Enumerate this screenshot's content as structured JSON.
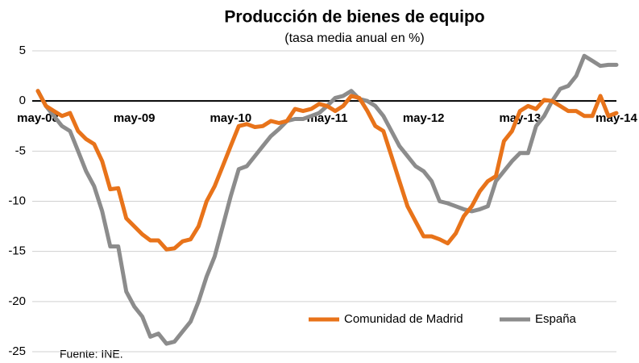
{
  "chart_data": {
    "type": "line",
    "title": "Producción de bienes de equipo",
    "subtitle": "(tasa media anual en %)",
    "source": "Fuente: INE.",
    "categories": [
      "may-08",
      null,
      null,
      null,
      null,
      null,
      null,
      null,
      null,
      null,
      null,
      null,
      "may-09",
      null,
      null,
      null,
      null,
      null,
      null,
      null,
      null,
      null,
      null,
      null,
      "may-10",
      null,
      null,
      null,
      null,
      null,
      null,
      null,
      null,
      null,
      null,
      null,
      "may-11",
      null,
      null,
      null,
      null,
      null,
      null,
      null,
      null,
      null,
      null,
      null,
      "may-12",
      null,
      null,
      null,
      null,
      null,
      null,
      null,
      null,
      null,
      null,
      null,
      "may-13",
      null,
      null,
      null,
      null,
      null,
      null,
      null,
      null,
      null,
      null,
      null,
      "may-14"
    ],
    "series": [
      {
        "name": "Comunidad de Madrid",
        "color": "#e8731a",
        "values": [
          1,
          -0.5,
          -1,
          -1.5,
          -1.2,
          -3,
          -3.8,
          -4.3,
          -6,
          -8.8,
          -8.7,
          -11.7,
          -12.5,
          -13.3,
          -13.9,
          -13.9,
          -14.8,
          -14.7,
          -14,
          -13.8,
          -12.5,
          -10,
          -8.5,
          -6.5,
          -4.5,
          -2.5,
          -2.3,
          -2.6,
          -2.5,
          -2,
          -2.2,
          -2,
          -0.8,
          -1,
          -0.8,
          -0.3,
          -0.5,
          -1,
          -0.5,
          0.5,
          0.3,
          -1,
          -2.5,
          -3,
          -5.5,
          -8,
          -10.5,
          -12,
          -13.5,
          -13.5,
          -13.8,
          -14.2,
          -13.2,
          -11.5,
          -10.5,
          -9,
          -8,
          -7.5,
          -4,
          -3,
          -1,
          -0.5,
          -0.8,
          0.1,
          0,
          -0.5,
          -1,
          -1,
          -1.5,
          -1.5,
          0.5,
          -1.5,
          -1.2
        ]
      },
      {
        "name": "España",
        "color": "#8c8c8c",
        "values": [
          1,
          -0.5,
          -1.5,
          -2.5,
          -3,
          -5,
          -7,
          -8.5,
          -11,
          -14.5,
          -14.5,
          -19,
          -20.5,
          -21.5,
          -23.5,
          -23.2,
          -24.2,
          -24,
          -23,
          -22,
          -20,
          -17.5,
          -15.5,
          -12.5,
          -9.5,
          -6.8,
          -6.5,
          -5.5,
          -4.5,
          -3.5,
          -2.8,
          -2,
          -1.8,
          -1.8,
          -1.5,
          -1.2,
          -0.5,
          0.3,
          0.5,
          1,
          0.2,
          0,
          -0.5,
          -1.5,
          -3,
          -4.5,
          -5.5,
          -6.5,
          -7,
          -8,
          -10,
          -10.2,
          -10.5,
          -10.8,
          -11,
          -10.8,
          -10.5,
          -8,
          -7,
          -6,
          -5.2,
          -5.2,
          -2.5,
          -1.5,
          0,
          1.2,
          1.5,
          2.5,
          4.5,
          4,
          3.5,
          3.6,
          3.6
        ]
      }
    ],
    "ylim": [
      -25,
      5
    ],
    "yticks": [
      5,
      0,
      -5,
      -10,
      -15,
      -20,
      -25
    ],
    "grid": true,
    "legend": "bottom"
  }
}
